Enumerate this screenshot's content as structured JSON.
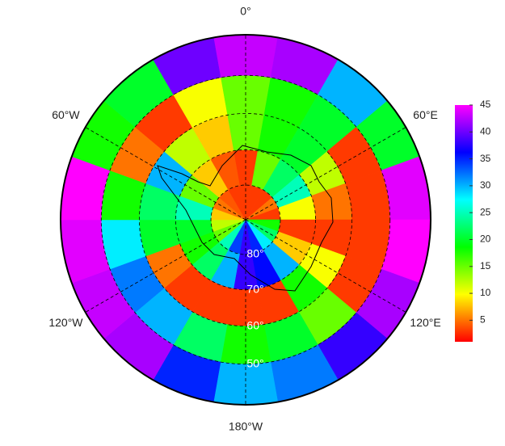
{
  "chart_data": {
    "type": "polar-heatmap",
    "lon_labels": [
      {
        "value": 0,
        "label": "0°"
      },
      {
        "value": 60,
        "label": "60°E"
      },
      {
        "value": 120,
        "label": "120°E"
      },
      {
        "value": 180,
        "label": "180°W"
      },
      {
        "value": -120,
        "label": "120°W"
      },
      {
        "value": -60,
        "label": "60°W"
      }
    ],
    "lat_labels": [
      {
        "value": 80,
        "label": "80°"
      },
      {
        "value": 70,
        "label": "70°"
      },
      {
        "value": 60,
        "label": "60°"
      },
      {
        "value": 50,
        "label": "50°"
      }
    ],
    "clim": [
      1,
      45
    ],
    "colorbar_ticks": [
      5,
      10,
      15,
      20,
      25,
      30,
      35,
      40,
      45
    ],
    "values": [
      [
        3,
        3,
        3,
        5,
        3,
        18,
        22,
        28,
        35,
        38,
        34,
        25,
        15,
        12,
        8,
        5,
        4,
        3
      ],
      [
        3,
        15,
        22,
        25,
        10,
        3,
        8,
        30,
        36,
        38,
        30,
        22,
        18,
        20,
        25,
        15,
        8,
        4
      ],
      [
        15,
        18,
        20,
        12,
        5,
        3,
        10,
        18,
        3,
        3,
        3,
        3,
        5,
        20,
        22,
        30,
        12,
        8
      ],
      [
        15,
        18,
        20,
        3,
        3,
        3,
        3,
        15,
        20,
        18,
        22,
        30,
        32,
        28,
        18,
        5,
        3,
        10
      ],
      [
        43,
        42,
        30,
        20,
        44,
        45,
        42,
        38,
        32,
        30,
        35,
        42,
        43,
        44,
        45,
        18,
        20,
        40
      ]
    ]
  }
}
